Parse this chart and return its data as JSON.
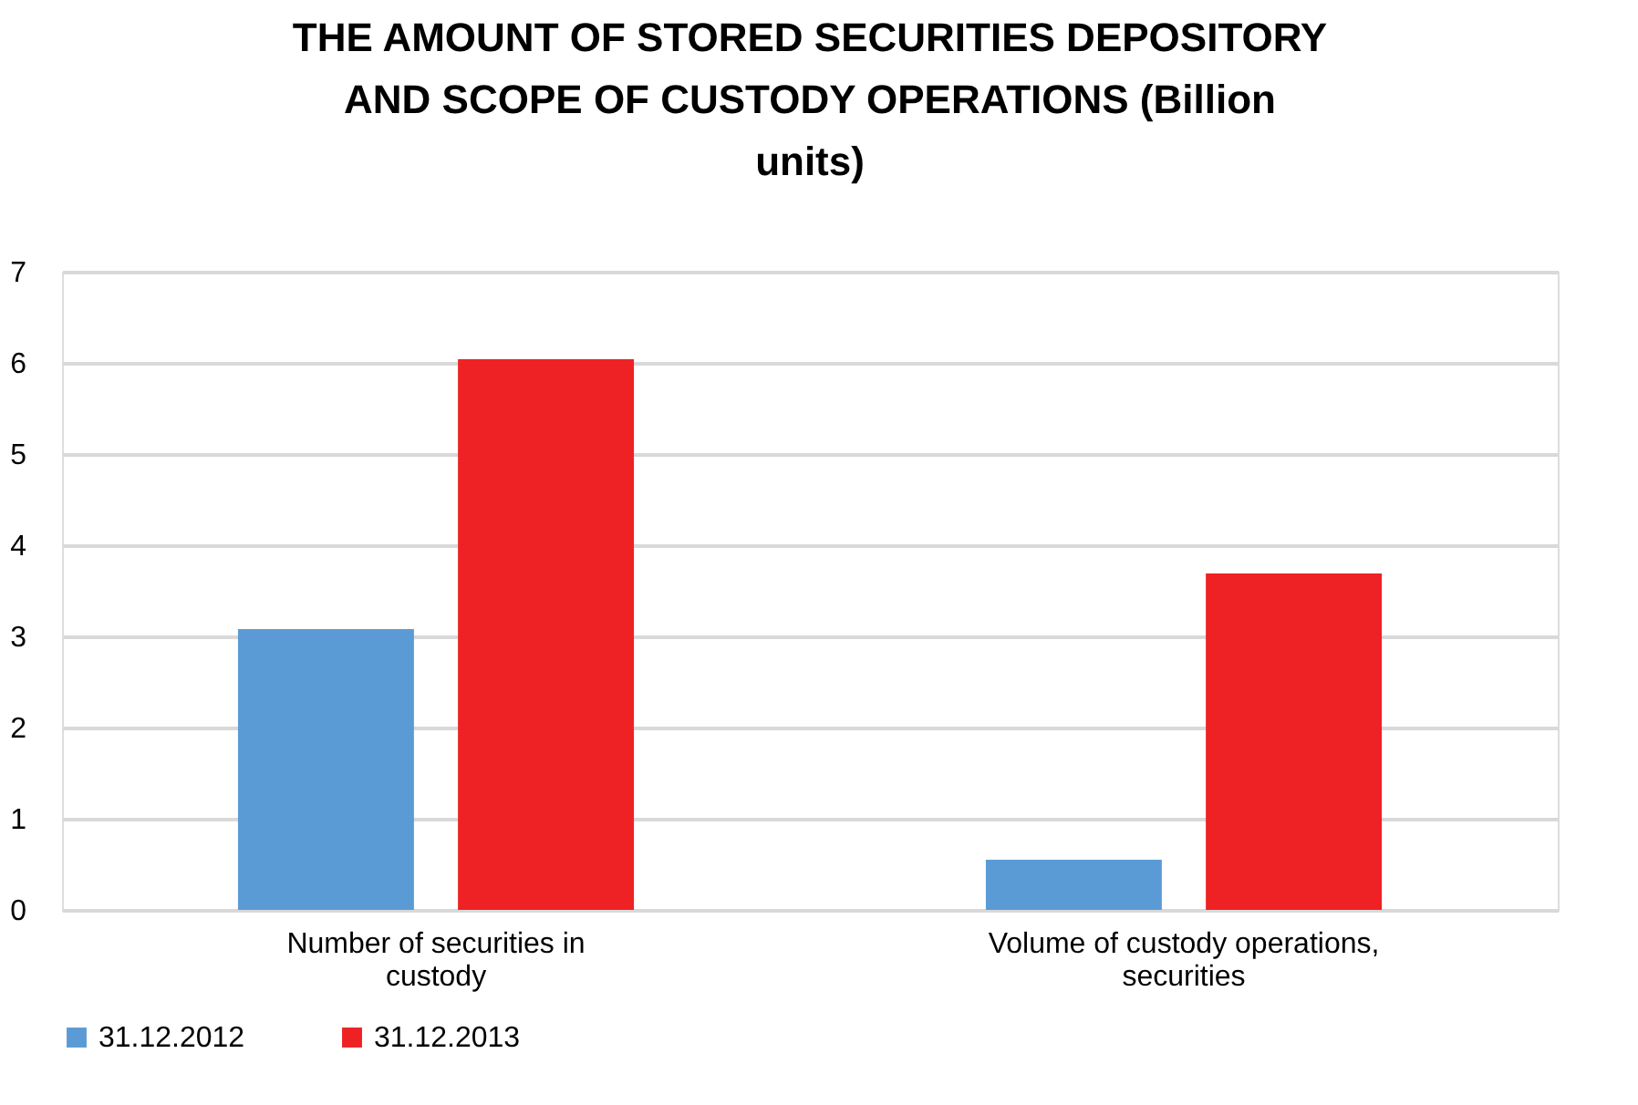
{
  "chart_data": {
    "type": "bar",
    "title": "THE AMOUNT OF STORED SECURITIES DEPOSITORY AND SCOPE OF CUSTODY OPERATIONS (Billion units)",
    "categories": [
      "Number of securities in custody",
      "Volume of custody operations, securities"
    ],
    "series": [
      {
        "name": "31.12.2012",
        "color": "#5b9bd5",
        "values": [
          3.08,
          0.55
        ]
      },
      {
        "name": "31.12.2013",
        "color": "#ee2224",
        "values": [
          6.04,
          3.69
        ]
      }
    ],
    "ylim": [
      0,
      7
    ],
    "yticks": [
      0,
      1,
      2,
      3,
      4,
      5,
      6,
      7
    ],
    "grid": "y",
    "legend": "bottom"
  }
}
